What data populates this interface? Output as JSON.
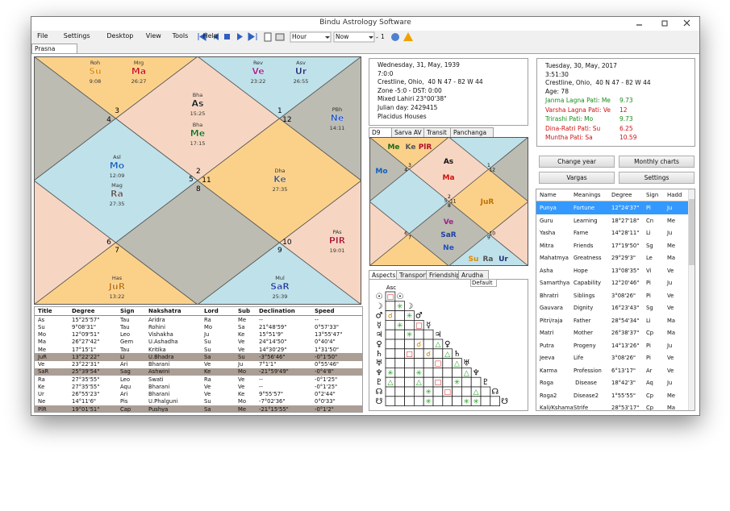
{
  "window": {
    "title": "Bindu Astrology Software",
    "menu": [
      "File",
      "Settings",
      "Desktop",
      "View",
      "Tools",
      "Help"
    ],
    "toolbar": {
      "period": "Hour",
      "time": "Now",
      "step": "1"
    },
    "tab": "Prasna"
  },
  "chart": {
    "houses": [
      "3",
      "4",
      "2",
      "5",
      "11",
      "8",
      "1",
      "12",
      "6",
      "7",
      "10",
      "9"
    ],
    "planets": [
      {
        "nak": "Roh",
        "abbr": "Su",
        "deg": "9:08",
        "color": "#e08a00"
      },
      {
        "nak": "Mrg",
        "abbr": "Ma",
        "deg": "26:27",
        "color": "#d01010"
      },
      {
        "nak": "Rev",
        "abbr": "Ve",
        "deg": "23:22",
        "color": "#a0208c"
      },
      {
        "nak": "Asv",
        "abbr": "Ur",
        "deg": "26:55",
        "color": "#20307a"
      },
      {
        "nak": "Bha",
        "abbr": "As",
        "deg": "15:25",
        "color": "#111111"
      },
      {
        "nak": "Bha",
        "abbr": "Me",
        "deg": "17:15",
        "color": "#1a6a1a"
      },
      {
        "nak": "PBh",
        "abbr": "Ne",
        "deg": "14:11",
        "color": "#2050c0"
      },
      {
        "nak": "Asl",
        "abbr": "Mo",
        "deg": "12:09",
        "color": "#1060c0"
      },
      {
        "nak": "Mag",
        "abbr": "Ra",
        "deg": "27:35",
        "color": "#555555"
      },
      {
        "nak": "Dha",
        "abbr": "Ke",
        "deg": "27:35",
        "color": "#555555"
      },
      {
        "nak": "PAs",
        "abbr": "PlR",
        "deg": "19:01",
        "color": "#b01030"
      },
      {
        "nak": "Has",
        "abbr": "JuR",
        "deg": "13:22",
        "color": "#c07000"
      },
      {
        "nak": "Mul",
        "abbr": "SaR",
        "deg": "25:39",
        "color": "#2040a0"
      }
    ]
  },
  "planet_table": {
    "columns": [
      "Title",
      "Degree",
      "Sign",
      "Nakshatra",
      "Lord",
      "Sub",
      "Declination",
      "Speed"
    ],
    "rows": [
      [
        "As",
        "15°25'57\"",
        "Tau",
        "Aridra",
        "Ra",
        "Me",
        "--",
        "--"
      ],
      [
        "Su",
        "9°08'31\"",
        "Tau",
        "Rohini",
        "Mo",
        "Sa",
        "21°48'59\"",
        "0°57'33\""
      ],
      [
        "Mo",
        "12°09'51\"",
        "Leo",
        "Vishakha",
        "Ju",
        "Ke",
        "15°51'9\"",
        "13°55'47\""
      ],
      [
        "Ma",
        "26°27'42\"",
        "Gem",
        "U.Ashadha",
        "Su",
        "Ve",
        "24°14'50\"",
        "0°40'4\""
      ],
      [
        "Me",
        "17°15'1\"",
        "Tau",
        "Kritika",
        "Su",
        "Ve",
        "14°30'29\"",
        "1°31'50\""
      ],
      [
        "JuR",
        "13°22'22\"",
        "Li",
        "U.Bhadra",
        "Sa",
        "Su",
        "-3°56'46\"",
        "-0°1'50\""
      ],
      [
        "Ve",
        "23°22'31\"",
        "Ari",
        "Bharani",
        "Ve",
        "Ju",
        "7°1'1\"",
        "0°55'46\""
      ],
      [
        "SaR",
        "25°39'54\"",
        "Sag",
        "Ashwini",
        "Ke",
        "Mo",
        "-21°59'49\"",
        "-0°4'8\""
      ],
      [
        "Ra",
        "27°35'55\"",
        "Leo",
        "Swati",
        "Ra",
        "Ve",
        "--",
        "-0°1'25\""
      ],
      [
        "Ke",
        "27°35'55\"",
        "Aqu",
        "Bharani",
        "Ve",
        "Ve",
        "--",
        "-0°1'25\""
      ],
      [
        "Ur",
        "26°55'23\"",
        "Ari",
        "Bharani",
        "Ve",
        "Ke",
        "9°55'57\"",
        "0°2'44\""
      ],
      [
        "Ne",
        "14°11'6\"",
        "Pis",
        "U.Phalguni",
        "Su",
        "Mo",
        "-7°02'36\"",
        "0°0'33\""
      ],
      [
        "PlR",
        "19°01'51\"",
        "Cap",
        "Pushya",
        "Sa",
        "Me",
        "-21°15'55\"",
        "-0°1'2\""
      ]
    ]
  },
  "birth_info": [
    "Wednesday, 31, May, 1939",
    "7:0:0",
    "Crestline, Ohio,  40 N 47 - 82 W 44",
    "Zone -5:0 - DST: 0:00",
    "Mixed Lahiri 23°00'38\"",
    "Julian day: 2429415",
    "Placidus Houses"
  ],
  "varga_tabs": [
    "D9",
    "Sarva AV",
    "Transit",
    "Panchanga"
  ],
  "d9": {
    "houses": [
      "3",
      "4",
      "2",
      "5",
      "11",
      "8",
      "1",
      "12",
      "6",
      "7",
      "10",
      "9"
    ],
    "planets": [
      {
        "abbr": "Me",
        "color": "#1a6a1a"
      },
      {
        "abbr": "Ke",
        "color": "#555555"
      },
      {
        "abbr": "PlR",
        "color": "#b01030"
      },
      {
        "abbr": "Mo",
        "color": "#1060c0"
      },
      {
        "abbr": "As",
        "color": "#111111"
      },
      {
        "abbr": "Ma",
        "color": "#d01010"
      },
      {
        "abbr": "JuR",
        "color": "#c07000"
      },
      {
        "abbr": "Ve",
        "color": "#a0208c"
      },
      {
        "abbr": "SaR",
        "color": "#2040a0"
      },
      {
        "abbr": "Ne",
        "color": "#2050c0"
      },
      {
        "abbr": "Su",
        "color": "#e08a00"
      },
      {
        "abbr": "Ra",
        "color": "#555555"
      },
      {
        "abbr": "Ur",
        "color": "#20307a"
      }
    ]
  },
  "aspect_tabs": [
    "Aspects",
    "Transport",
    "Friendship",
    "Arudha"
  ],
  "aspects": {
    "mode": "Default",
    "top": "Asc",
    "labels": [
      "☉",
      "☽",
      "♂",
      "☿",
      "♃",
      "♀",
      "♄",
      "♅",
      "♆",
      "♇",
      "☊",
      "☋"
    ],
    "rows": [
      [
        "□"
      ],
      [
        null,
        "✳"
      ],
      [
        "☌",
        null,
        "✳"
      ],
      [
        null,
        "✳",
        null,
        "□"
      ],
      [
        null,
        null,
        "✳",
        null,
        null
      ],
      [
        null,
        null,
        null,
        "☌",
        null,
        "△"
      ],
      [
        null,
        null,
        "□",
        null,
        "☌",
        null,
        "△"
      ],
      [
        null,
        null,
        null,
        null,
        null,
        "□",
        null,
        "△"
      ],
      [
        "✳",
        null,
        null,
        "✳",
        null,
        null,
        null,
        null,
        "△"
      ],
      [
        "△",
        null,
        null,
        "△",
        null,
        "□",
        null,
        "✳",
        null,
        null
      ],
      [
        null,
        null,
        null,
        null,
        "✳",
        null,
        "□",
        null,
        null,
        "△",
        null
      ],
      [
        null,
        null,
        null,
        null,
        "✳",
        null,
        null,
        null,
        "✳",
        "✳",
        null,
        null
      ]
    ]
  },
  "year_info": {
    "lines": [
      "Tuesday, 30, May, 2017",
      "3:51:30",
      "Crestline, Ohio,  40 N 47 - 82 W 44",
      "Age: 78"
    ],
    "patis": [
      {
        "label": "Janma Lagna Pati: Me",
        "value": "9.73",
        "color": "#1a8a1a"
      },
      {
        "label": "Varsha Lagna Pati: Ve",
        "value": "12",
        "color": "#d01010"
      },
      {
        "label": "Trirashi Pati: Mo",
        "value": "9.73",
        "color": "#1a8a1a"
      },
      {
        "label": "Dina-Ratri Pati: Su",
        "value": "6.25",
        "color": "#d01010"
      },
      {
        "label": "Muntha Pati: Sa",
        "value": "10.59",
        "color": "#d01010"
      }
    ]
  },
  "buttons": [
    "Change year",
    "Monthly charts",
    "Vargas",
    "Settings"
  ],
  "arabic_parts": {
    "selected": 0,
    "columns": [
      "Name",
      "Meanings",
      "Degree",
      "Sign",
      "Hadd"
    ],
    "rows": [
      [
        "Punya",
        "Fortune",
        "12°24'37\"",
        "Pi",
        "Ju"
      ],
      [
        "Guru",
        "Learning",
        "18°27'18\"",
        "Cn",
        "Me"
      ],
      [
        "Yasha",
        "Fame",
        "14°28'11\"",
        "Li",
        "Ju"
      ],
      [
        "Mitra",
        "Friends",
        "17°19'50\"",
        "Sg",
        "Me"
      ],
      [
        "Mahatmya",
        "Greatness",
        "29°29'3\"",
        "Le",
        "Ma"
      ],
      [
        "Asha",
        "Hope",
        "13°08'35\"",
        "Vi",
        "Ve"
      ],
      [
        "Samarthya",
        "Capability",
        "12°20'46\"",
        "Pi",
        "Ju"
      ],
      [
        "Bhratri",
        "Siblings",
        "3°08'26\"",
        "Pi",
        "Ve"
      ],
      [
        "Gauvara",
        "Dignity",
        "16°23'43\"",
        "Sg",
        "Ve"
      ],
      [
        "Pitri/raja",
        "Father",
        "28°54'34\"",
        "Li",
        "Ma"
      ],
      [
        "Matri",
        "Mother",
        "26°38'37\"",
        "Cp",
        "Ma"
      ],
      [
        "Putra",
        "Progeny",
        "14°13'26\"",
        "Pi",
        "Ju"
      ],
      [
        "Jeeva",
        "Life",
        "3°08'26\"",
        "Pi",
        "Ve"
      ],
      [
        "Karma",
        "Profession",
        "6°13'17\"",
        "Ar",
        "Ve"
      ],
      [
        "Roga",
        " Disease",
        "18°42'3\"",
        "Aq",
        "Ju"
      ],
      [
        "Roga2",
        "Disease2",
        "1°55'55\"",
        "Cp",
        "Me"
      ],
      [
        "Kali/Kshama",
        "Strife",
        "28°53'17\"",
        "Cp",
        "Ma"
      ]
    ]
  }
}
